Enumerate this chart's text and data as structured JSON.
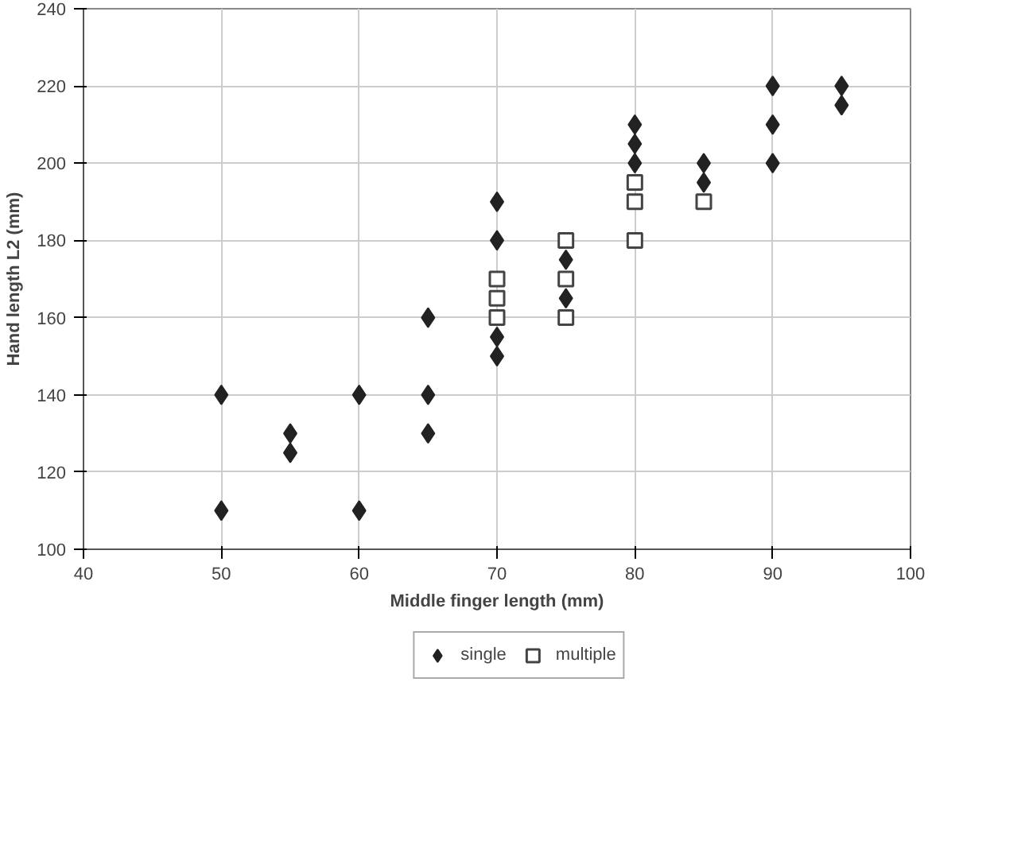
{
  "chart_data": {
    "type": "scatter",
    "xlabel": "Middle finger length (mm)",
    "ylabel": "Hand length L2 (mm)",
    "xlim": [
      40,
      100
    ],
    "ylim": [
      100,
      240
    ],
    "xticks": [
      40,
      50,
      60,
      70,
      80,
      90,
      100
    ],
    "yticks": [
      100,
      120,
      140,
      160,
      180,
      200,
      220,
      240
    ],
    "grid": true,
    "legend": "bottom",
    "series": [
      {
        "name": "single",
        "color": "#222222",
        "marker": "diamond",
        "x": [
          50,
          50,
          55,
          55,
          60,
          60,
          65,
          65,
          65,
          70,
          70,
          70,
          70,
          75,
          75,
          80,
          80,
          80,
          85,
          85,
          90,
          90,
          90,
          95,
          95
        ],
        "values": [
          140,
          110,
          130,
          125,
          140,
          110,
          160,
          140,
          130,
          190,
          180,
          155,
          150,
          175,
          165,
          210,
          205,
          200,
          200,
          195,
          220,
          210,
          200,
          220,
          215
        ]
      },
      {
        "name": "multiple",
        "color": "#444444",
        "marker": "square",
        "x": [
          70,
          70,
          70,
          75,
          75,
          75,
          80,
          80,
          80,
          85
        ],
        "values": [
          170,
          165,
          160,
          180,
          170,
          160,
          195,
          190,
          180,
          190
        ]
      }
    ]
  }
}
